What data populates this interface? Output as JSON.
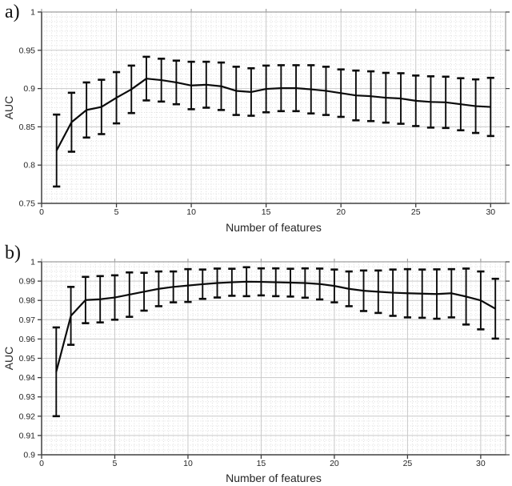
{
  "figure": {
    "background": "#ffffff",
    "data_color": "#0b0b0b",
    "major_grid_color": "#c9c9c9",
    "minor_grid_color": "#dedede",
    "spine_light_color": "#a3a3a3",
    "spine_dark_color": "#4a4a4a",
    "tick_color": "#3d3d3d",
    "label_color": "#262626"
  },
  "chart_data": [
    {
      "type": "line",
      "panel_label": "a)",
      "title": "",
      "xlabel": "Number of features",
      "ylabel": "AUC",
      "error_bars": true,
      "legend": "none",
      "grid": "major-solid + minor-dotted",
      "xlim": [
        0,
        31
      ],
      "ylim": [
        0.75,
        1.0
      ],
      "xticks": [
        0,
        5,
        10,
        15,
        20,
        25,
        30
      ],
      "xtick_labels": [
        "0",
        "5",
        "10",
        "15",
        "20",
        "25",
        "30"
      ],
      "yticks": [
        0.75,
        0.8,
        0.85,
        0.9,
        0.95,
        1.0
      ],
      "ytick_labels": [
        "0.75",
        "0.8",
        "0.85",
        "0.9",
        "0.95",
        "1"
      ],
      "x": [
        1,
        2,
        3,
        4,
        5,
        6,
        7,
        8,
        9,
        10,
        11,
        12,
        13,
        14,
        15,
        16,
        17,
        18,
        19,
        20,
        21,
        22,
        23,
        24,
        25,
        26,
        27,
        28,
        29,
        30
      ],
      "y": [
        0.819,
        0.856,
        0.872,
        0.876,
        0.888,
        0.899,
        0.913,
        0.911,
        0.908,
        0.904,
        0.905,
        0.903,
        0.897,
        0.8955,
        0.8995,
        0.9005,
        0.9005,
        0.899,
        0.897,
        0.894,
        0.891,
        0.89,
        0.888,
        0.887,
        0.884,
        0.8825,
        0.882,
        0.8795,
        0.877,
        0.876
      ],
      "yerr": [
        0.047,
        0.0385,
        0.036,
        0.0355,
        0.0335,
        0.031,
        0.0285,
        0.028,
        0.0285,
        0.031,
        0.03,
        0.031,
        0.0315,
        0.031,
        0.0305,
        0.03,
        0.03,
        0.0315,
        0.0315,
        0.031,
        0.0325,
        0.0325,
        0.0325,
        0.033,
        0.033,
        0.0335,
        0.0335,
        0.034,
        0.035,
        0.038
      ]
    },
    {
      "type": "line",
      "panel_label": "b)",
      "title": "",
      "xlabel": "Number of features",
      "ylabel": "AUC",
      "error_bars": true,
      "legend": "none",
      "grid": "major-solid + minor-dotted",
      "xlim": [
        0,
        31.7
      ],
      "ylim": [
        0.9,
        1.0
      ],
      "xticks": [
        0,
        5,
        10,
        15,
        20,
        25,
        30
      ],
      "xtick_labels": [
        "0",
        "5",
        "10",
        "15",
        "20",
        "25",
        "30"
      ],
      "yticks": [
        0.9,
        0.91,
        0.92,
        0.93,
        0.94,
        0.95,
        0.96,
        0.97,
        0.98,
        0.99,
        1.0
      ],
      "ytick_labels": [
        "0.9",
        "0.91",
        "0.92",
        "0.93",
        "0.94",
        "0.95",
        "0.96",
        "0.97",
        "0.98",
        "0.99",
        "1"
      ],
      "x": [
        1,
        2,
        3,
        4,
        5,
        6,
        7,
        8,
        9,
        10,
        11,
        12,
        13,
        14,
        15,
        16,
        17,
        18,
        19,
        20,
        21,
        22,
        23,
        24,
        25,
        26,
        27,
        28,
        29,
        30,
        31
      ],
      "y": [
        0.943,
        0.972,
        0.9802,
        0.9806,
        0.9815,
        0.983,
        0.9845,
        0.986,
        0.987,
        0.9877,
        0.9884,
        0.989,
        0.9894,
        0.9897,
        0.9896,
        0.9894,
        0.9892,
        0.989,
        0.9885,
        0.9875,
        0.986,
        0.985,
        0.9845,
        0.984,
        0.9837,
        0.9835,
        0.9833,
        0.9837,
        0.982,
        0.98,
        0.9757
      ],
      "yerr": [
        0.023,
        0.015,
        0.012,
        0.012,
        0.0115,
        0.0115,
        0.0098,
        0.009,
        0.008,
        0.0085,
        0.0076,
        0.0075,
        0.007,
        0.0075,
        0.007,
        0.0072,
        0.0072,
        0.0076,
        0.008,
        0.0085,
        0.009,
        0.0105,
        0.011,
        0.012,
        0.0125,
        0.0125,
        0.0128,
        0.0125,
        0.0145,
        0.015,
        0.0155
      ]
    }
  ]
}
